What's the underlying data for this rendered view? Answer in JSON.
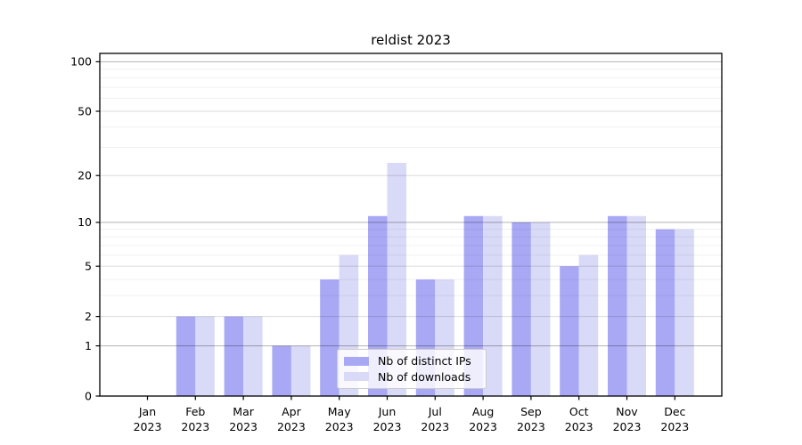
{
  "figure": {
    "background": "#ffffff"
  },
  "chart_data": {
    "type": "bar",
    "title": "reldist 2023",
    "categories": [
      "Jan 2023",
      "Feb 2023",
      "Mar 2023",
      "Apr 2023",
      "May 2023",
      "Jun 2023",
      "Jul 2023",
      "Aug 2023",
      "Sep 2023",
      "Oct 2023",
      "Nov 2023",
      "Dec 2023"
    ],
    "series": [
      {
        "name": "Nb of distinct IPs",
        "slug": "distinct-ips",
        "color": "#a8a8f5",
        "values": [
          0,
          2,
          2,
          1,
          4,
          11,
          4,
          11,
          10,
          5,
          11,
          9
        ]
      },
      {
        "name": "Nb of downloads",
        "slug": "downloads",
        "color": "#d9d9f8",
        "values": [
          0,
          2,
          2,
          1,
          6,
          24,
          4,
          11,
          10,
          6,
          11,
          9
        ]
      }
    ],
    "xlabel": "",
    "ylabel": "",
    "yscale": "log1p",
    "ylim": [
      0,
      112
    ],
    "yticks": [
      0,
      1,
      2,
      5,
      10,
      20,
      50,
      100
    ],
    "grid": {
      "on": true,
      "major_lines": [
        1,
        10,
        100
      ],
      "mid_lines": [
        2,
        5,
        20,
        50
      ],
      "minor_lines": [
        3,
        4,
        6,
        7,
        8,
        9,
        30,
        40,
        60,
        70,
        80,
        90
      ]
    },
    "legend_position": "lower center"
  },
  "colors": {
    "spine": "#000000",
    "tick_text": "#000000",
    "major_grid": "rgba(0,0,0,0.30)",
    "mid_grid": "rgba(0,0,0,0.14)",
    "minor_grid": "rgba(0,0,0,0.06)"
  }
}
